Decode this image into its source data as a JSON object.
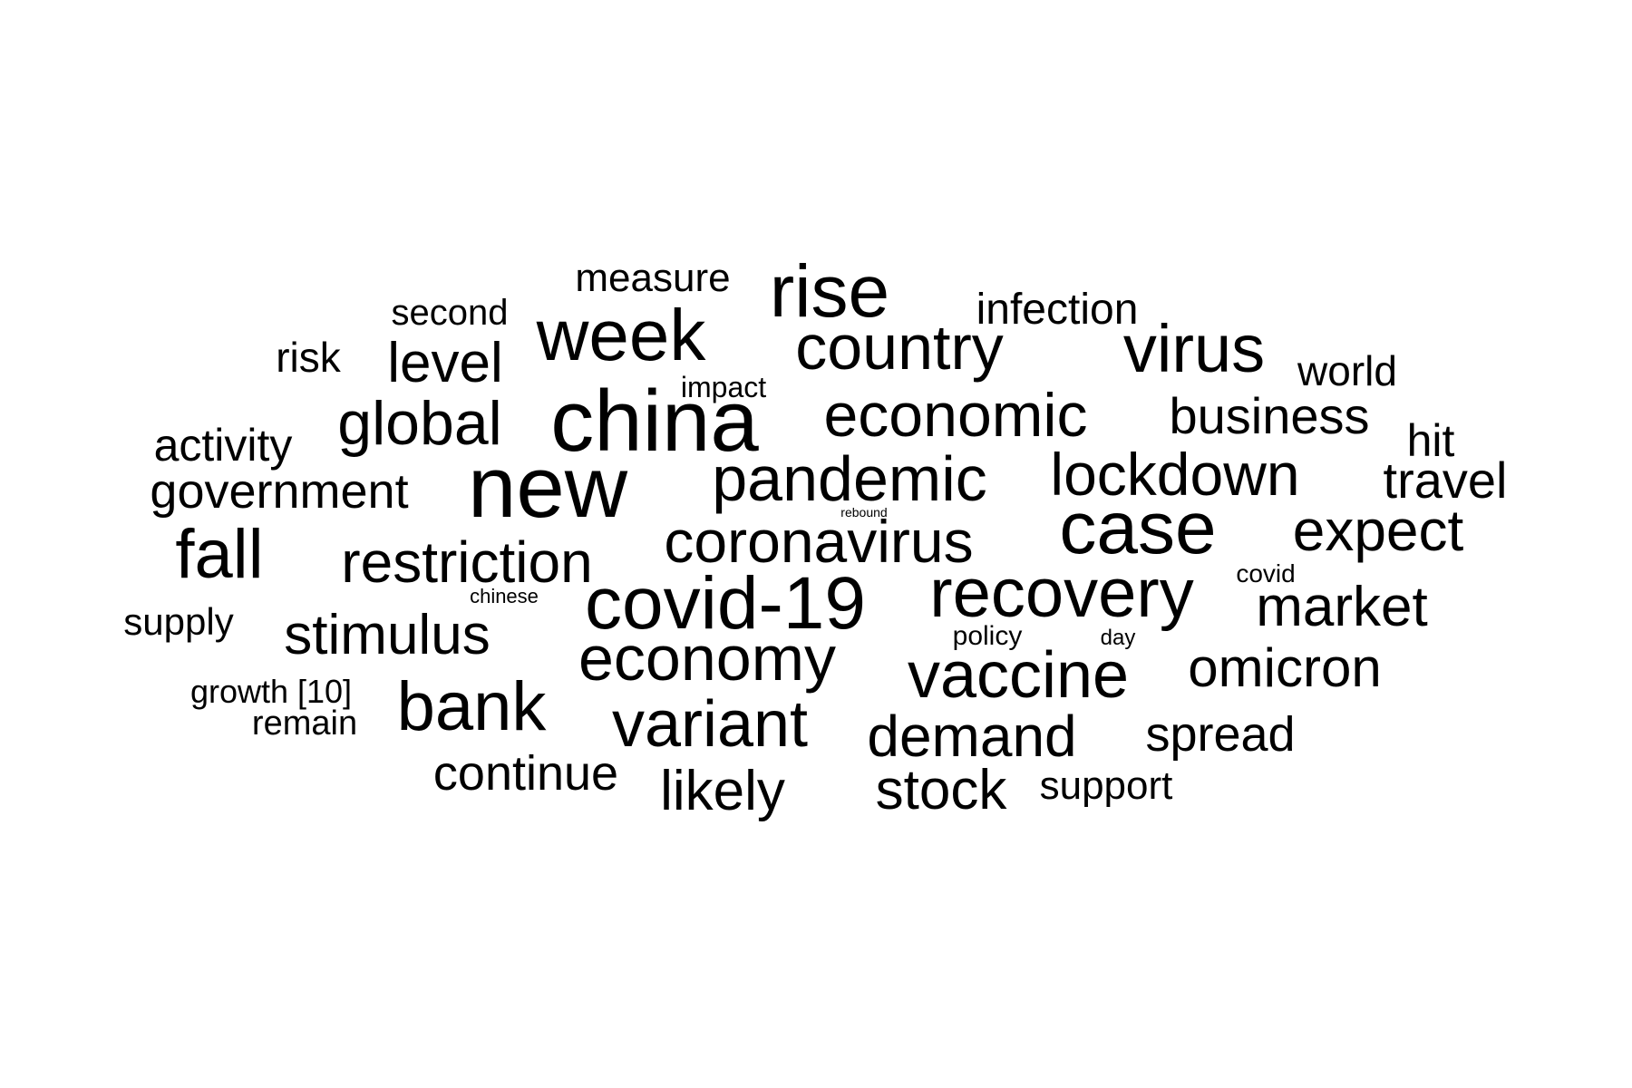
{
  "word_cloud": {
    "text_color": "#000000",
    "background_color": "#ffffff",
    "words": [
      {
        "id": "new",
        "text": "new"
      },
      {
        "id": "china",
        "text": "china"
      },
      {
        "id": "case",
        "text": "case"
      },
      {
        "id": "covid-19",
        "text": "covid-19"
      },
      {
        "id": "rise",
        "text": "rise"
      },
      {
        "id": "week",
        "text": "week"
      },
      {
        "id": "country",
        "text": "country"
      },
      {
        "id": "virus",
        "text": "virus"
      },
      {
        "id": "pandemic",
        "text": "pandemic"
      },
      {
        "id": "economy",
        "text": "economy"
      },
      {
        "id": "recovery",
        "text": "recovery"
      },
      {
        "id": "vaccine",
        "text": "vaccine"
      },
      {
        "id": "economic",
        "text": "economic"
      },
      {
        "id": "variant",
        "text": "variant"
      },
      {
        "id": "bank",
        "text": "bank"
      },
      {
        "id": "coronavirus",
        "text": "coronavirus"
      },
      {
        "id": "lockdown",
        "text": "lockdown"
      },
      {
        "id": "global",
        "text": "global"
      },
      {
        "id": "fall",
        "text": "fall"
      },
      {
        "id": "expect",
        "text": "expect"
      },
      {
        "id": "restriction",
        "text": "restriction"
      },
      {
        "id": "market",
        "text": "market"
      },
      {
        "id": "demand",
        "text": "demand"
      },
      {
        "id": "omicron",
        "text": "omicron"
      },
      {
        "id": "stimulus",
        "text": "stimulus"
      },
      {
        "id": "level",
        "text": "level"
      },
      {
        "id": "stock",
        "text": "stock"
      },
      {
        "id": "likely",
        "text": "likely"
      },
      {
        "id": "business",
        "text": "business"
      },
      {
        "id": "government",
        "text": "government"
      },
      {
        "id": "travel",
        "text": "travel"
      },
      {
        "id": "continue",
        "text": "continue"
      },
      {
        "id": "spread",
        "text": "spread"
      },
      {
        "id": "activity",
        "text": "activity"
      },
      {
        "id": "infection",
        "text": "infection"
      },
      {
        "id": "hit",
        "text": "hit"
      },
      {
        "id": "world",
        "text": "world"
      },
      {
        "id": "measure",
        "text": "measure"
      },
      {
        "id": "support",
        "text": "support"
      },
      {
        "id": "risk",
        "text": "risk"
      },
      {
        "id": "second",
        "text": "second"
      },
      {
        "id": "supply",
        "text": "supply"
      },
      {
        "id": "remain",
        "text": "remain"
      },
      {
        "id": "growth",
        "text": "growth [10]"
      },
      {
        "id": "impact",
        "text": "impact"
      },
      {
        "id": "policy",
        "text": "policy"
      },
      {
        "id": "covid",
        "text": "covid"
      },
      {
        "id": "day",
        "text": "day"
      },
      {
        "id": "chinese",
        "text": "chinese"
      },
      {
        "id": "rebound",
        "text": "rebound"
      }
    ]
  }
}
